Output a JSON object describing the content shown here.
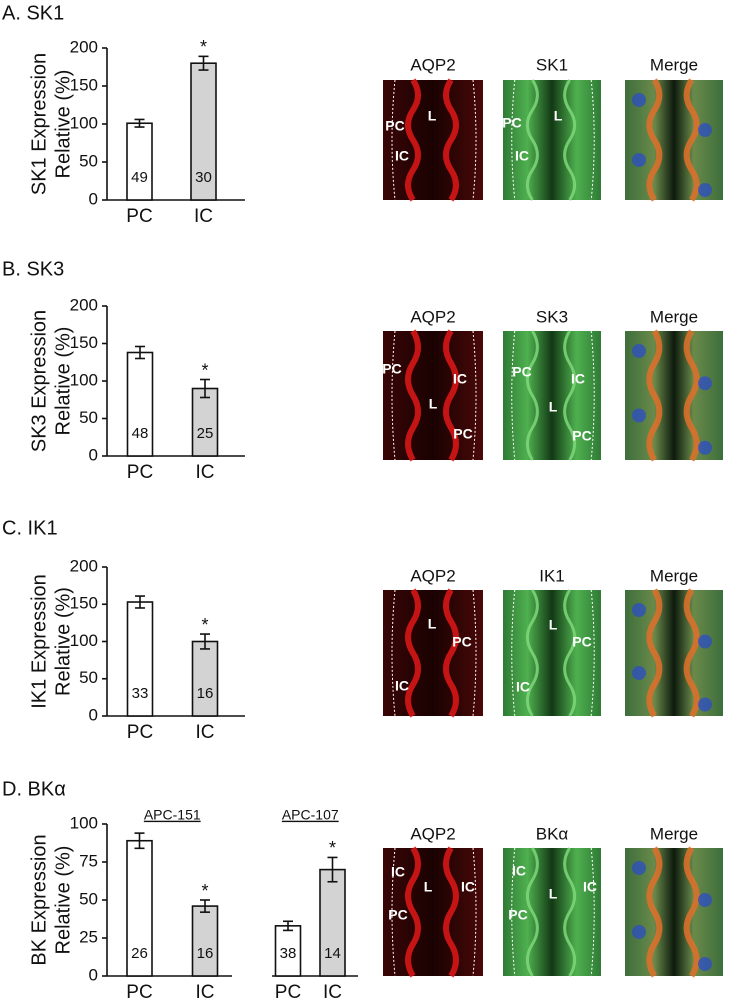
{
  "chart_data": [
    {
      "type": "bar",
      "title": "A. SK1",
      "ylabel": [
        "SK1 Expression",
        "Relative (%)"
      ],
      "categories": [
        "PC",
        "IC"
      ],
      "values": [
        101,
        180
      ],
      "errors": [
        5,
        9
      ],
      "n": [
        49,
        30
      ],
      "colors": [
        "#ffffff",
        "#d3d3d3"
      ],
      "significance": [
        {
          "category": "IC",
          "label": "*"
        }
      ],
      "ylim": [
        0,
        200
      ],
      "yticks": [
        0,
        50,
        100,
        150,
        200
      ]
    },
    {
      "type": "bar",
      "title": "B. SK3",
      "ylabel": [
        "SK3 Expression",
        "Relative (%)"
      ],
      "categories": [
        "PC",
        "IC"
      ],
      "values": [
        138,
        90
      ],
      "errors": [
        8,
        12
      ],
      "n": [
        48,
        25
      ],
      "colors": [
        "#ffffff",
        "#d3d3d3"
      ],
      "significance": [
        {
          "category": "IC",
          "label": "*"
        }
      ],
      "ylim": [
        0,
        200
      ],
      "yticks": [
        0,
        50,
        100,
        150,
        200
      ]
    },
    {
      "type": "bar",
      "title": "C. IK1",
      "ylabel": [
        "IK1 Expression",
        "Relative (%)"
      ],
      "categories": [
        "PC",
        "IC"
      ],
      "values": [
        153,
        100
      ],
      "errors": [
        8,
        10
      ],
      "n": [
        33,
        16
      ],
      "colors": [
        "#ffffff",
        "#d3d3d3"
      ],
      "significance": [
        {
          "category": "IC",
          "label": "*"
        }
      ],
      "ylim": [
        0,
        200
      ],
      "yticks": [
        0,
        50,
        100,
        150,
        200
      ]
    },
    {
      "type": "bar",
      "title": "D. BKα",
      "subtitle": "APC-151",
      "ylabel": [
        "BK Expression",
        "Relative (%)"
      ],
      "categories": [
        "PC",
        "IC"
      ],
      "values": [
        89,
        46
      ],
      "errors": [
        5,
        4
      ],
      "n": [
        26,
        16
      ],
      "colors": [
        "#ffffff",
        "#d3d3d3"
      ],
      "significance": [
        {
          "category": "IC",
          "label": "*"
        }
      ],
      "ylim": [
        0,
        100
      ],
      "yticks": [
        0,
        25,
        50,
        75,
        100
      ]
    },
    {
      "type": "bar",
      "subtitle": "APC-107",
      "categories": [
        "PC",
        "IC"
      ],
      "values": [
        33,
        70
      ],
      "errors": [
        3,
        8
      ],
      "n": [
        38,
        14
      ],
      "colors": [
        "#ffffff",
        "#d3d3d3"
      ],
      "significance": [
        {
          "category": "IC",
          "label": "*"
        }
      ],
      "ylim": [
        0,
        100
      ]
    }
  ],
  "images": [
    {
      "labels": [
        "AQP2",
        "SK1",
        "Merge"
      ],
      "annotations": [
        [
          "PC",
          "L",
          "IC"
        ],
        [
          "PC",
          "L",
          "IC"
        ]
      ]
    },
    {
      "labels": [
        "AQP2",
        "SK3",
        "Merge"
      ],
      "annotations": [
        [
          "PC",
          "IC",
          "L",
          "PC"
        ],
        [
          "PC",
          "IC",
          "L",
          "PC"
        ]
      ]
    },
    {
      "labels": [
        "AQP2",
        "IK1",
        "Merge"
      ],
      "annotations": [
        [
          "L",
          "PC",
          "IC"
        ],
        [
          "L",
          "PC",
          "IC"
        ]
      ]
    },
    {
      "labels": [
        "AQP2",
        "BKα",
        "Merge"
      ],
      "annotations": [
        [
          "IC",
          "L",
          "IC",
          "PC"
        ],
        [
          "IC",
          "L",
          "IC",
          "PC"
        ]
      ]
    }
  ]
}
